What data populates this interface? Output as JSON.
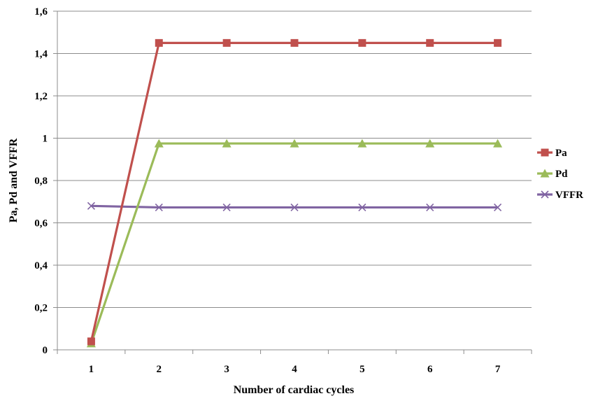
{
  "chart_data": {
    "type": "line",
    "title": "",
    "xlabel": "Number of cardiac cycles",
    "ylabel": "Pa, Pd and VFFR",
    "categories": [
      "1",
      "2",
      "3",
      "4",
      "5",
      "6",
      "7"
    ],
    "ylim": [
      0,
      1.6
    ],
    "yticks": [
      0,
      0.2,
      0.4,
      0.6,
      0.8,
      1,
      1.2,
      1.4,
      1.6
    ],
    "ytick_labels": [
      "0",
      "0,2",
      "0,4",
      "0,6",
      "0,8",
      "1",
      "1,2",
      "1,4",
      "1,6"
    ],
    "grid": true,
    "legend_position": "right",
    "series": [
      {
        "name": "Pa",
        "color": "#c0504d",
        "marker": "square",
        "values": [
          0.04,
          1.45,
          1.45,
          1.45,
          1.45,
          1.45,
          1.45
        ]
      },
      {
        "name": "Pd",
        "color": "#9bbb59",
        "marker": "triangle",
        "values": [
          0.03,
          0.975,
          0.975,
          0.975,
          0.975,
          0.975,
          0.975
        ]
      },
      {
        "name": "VFFR",
        "color": "#8064a2",
        "marker": "x",
        "values": [
          0.68,
          0.673,
          0.673,
          0.673,
          0.673,
          0.673,
          0.673
        ]
      }
    ]
  }
}
